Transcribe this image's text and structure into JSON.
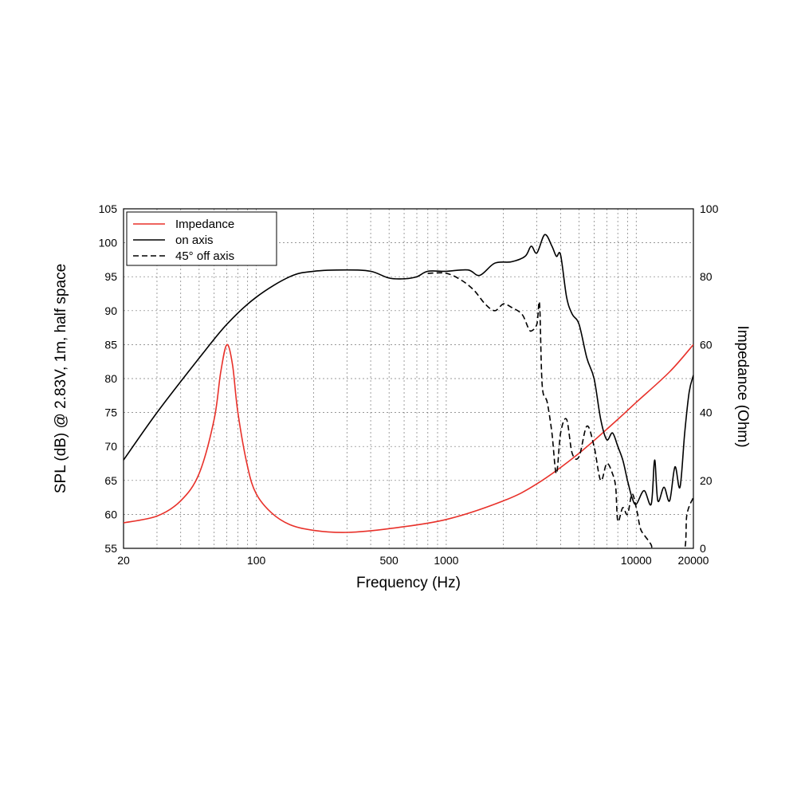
{
  "chart_data": {
    "type": "line",
    "x_scale": "log",
    "grid": true,
    "xlabel": "Frequency (Hz)",
    "ylabel_left": "SPL (dB) @ 2.83V, 1m, half space",
    "ylabel_right": "Impedance (Ohm)",
    "xlim": [
      20,
      20000
    ],
    "ylim_left": [
      55,
      105
    ],
    "ylim_right": [
      0,
      100
    ],
    "x_tick_labels": [
      "20",
      "100",
      "500",
      "1000",
      "10000",
      "20000"
    ],
    "x_tick_values": [
      20,
      100,
      500,
      1000,
      10000,
      20000
    ],
    "y_left_ticks": [
      55,
      60,
      65,
      70,
      75,
      80,
      85,
      90,
      95,
      100,
      105
    ],
    "y_right_ticks": [
      0,
      20,
      40,
      60,
      80,
      100
    ],
    "legend_position": "top-left",
    "series": [
      {
        "name": "Impedance",
        "axis": "right",
        "style": "solid",
        "color": "#e8312a",
        "x": [
          20,
          30,
          40,
          50,
          60,
          65,
          70,
          75,
          80,
          90,
          100,
          120,
          150,
          200,
          300,
          500,
          1000,
          2000,
          3000,
          5000,
          8000,
          10000,
          15000,
          20000
        ],
        "y": [
          7.5,
          9.5,
          14,
          22,
          38,
          52,
          60,
          54,
          40,
          24,
          16,
          10.5,
          7,
          5.3,
          4.7,
          5.8,
          8.5,
          14,
          19,
          28,
          38,
          43,
          52,
          60
        ]
      },
      {
        "name": "on axis",
        "axis": "left",
        "style": "solid",
        "color": "#000000",
        "x": [
          20,
          30,
          50,
          70,
          100,
          150,
          200,
          300,
          400,
          500,
          600,
          700,
          800,
          1000,
          1300,
          1500,
          1800,
          2200,
          2600,
          2800,
          3000,
          3300,
          3600,
          3800,
          4000,
          4300,
          4600,
          5000,
          5500,
          6000,
          6500,
          7000,
          7500,
          8000,
          8500,
          9000,
          9500,
          10000,
          11000,
          12000,
          12500,
          13000,
          14000,
          15000,
          16000,
          17000,
          18000,
          19000,
          20000
        ],
        "y": [
          68,
          75,
          83,
          88,
          92,
          95,
          95.8,
          96,
          95.8,
          94.8,
          94.7,
          95,
          95.8,
          95.8,
          96,
          95.2,
          97,
          97.2,
          98,
          99.5,
          98.5,
          101.2,
          99.5,
          98,
          98.2,
          92,
          89.5,
          88,
          83,
          80,
          74,
          71,
          72,
          70,
          68,
          65,
          62.5,
          61.5,
          63.5,
          61.5,
          68,
          62,
          64,
          62,
          67,
          64,
          72,
          78,
          80.5
        ]
      },
      {
        "name": "45° off axis",
        "axis": "left",
        "style": "dashed",
        "color": "#000000",
        "x": [
          800,
          1000,
          1200,
          1400,
          1600,
          1800,
          2000,
          2200,
          2500,
          2700,
          2800,
          3000,
          3100,
          3200,
          3400,
          3600,
          3800,
          4000,
          4300,
          4600,
          5000,
          5500,
          6000,
          6500,
          7000,
          7500,
          7800,
          8000,
          8500,
          9000,
          9500,
          10000,
          10500,
          11000,
          12000,
          12500,
          17500,
          18500,
          20000
        ],
        "y": [
          95.5,
          95.5,
          94.5,
          93,
          91,
          90,
          91,
          90.5,
          89.5,
          87.5,
          87,
          88,
          91,
          79,
          76.5,
          72,
          66,
          72,
          74,
          69,
          68.5,
          73,
          70,
          65,
          67.5,
          66,
          64,
          59,
          61,
          60,
          63,
          61,
          58,
          57,
          55.5,
          54,
          54,
          60,
          62.5
        ]
      }
    ]
  }
}
